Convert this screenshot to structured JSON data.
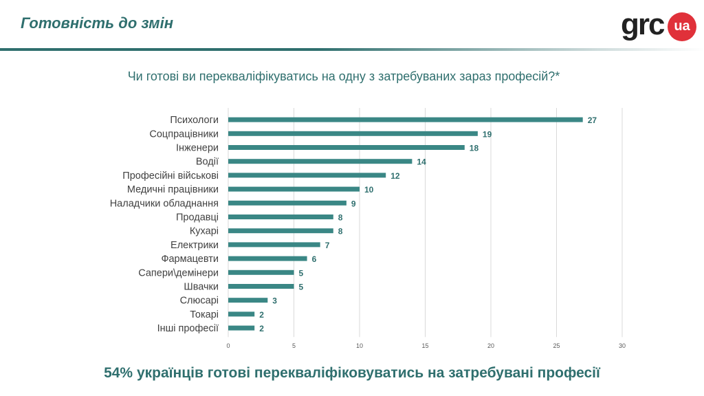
{
  "header": {
    "title": "Готовність до змін"
  },
  "logo": {
    "text": "grc",
    "badge": "ua"
  },
  "chart_title": "Чи готові ви перекваліфікуватись на одну з затребуваних зараз професій?*",
  "footer": {
    "text": "54% українців готові перекваліфіковуватись на затребувані професії"
  },
  "colors": {
    "accent": "#2f6f6e",
    "bar": "#3a8785",
    "brand_red": "#e0313a"
  },
  "chart_data": {
    "type": "bar",
    "orientation": "horizontal",
    "categories": [
      "Психологи",
      "Соцпрацівники",
      "Інженери",
      "Водії",
      "Професійні військові",
      "Медичні працівники",
      "Наладчики обладнання",
      "Продавці",
      "Кухарі",
      "Електрики",
      "Фармацевти",
      "Сапери\\демінери",
      "Швачки",
      "Слюсарі",
      "Токарі",
      "Інші професії"
    ],
    "values": [
      27,
      19,
      18,
      14,
      12,
      10,
      9,
      8,
      8,
      7,
      6,
      5,
      5,
      3,
      2,
      2
    ],
    "xlim": [
      0,
      30
    ],
    "xticks": [
      0,
      5,
      10,
      15,
      20,
      25,
      30
    ],
    "grid": true,
    "title": "Чи готові ви перекваліфікуватись на одну з затребуваних зараз професій?*"
  }
}
